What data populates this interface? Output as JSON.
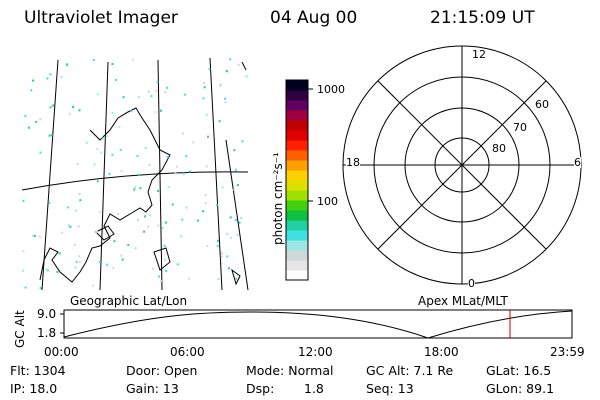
{
  "header": {
    "instrument": "Ultraviolet Imager",
    "date": "04 Aug 00",
    "time": "21:15:09 UT"
  },
  "colorbar": {
    "unit_label": "photon cm⁻²s⁻¹",
    "tick_labels": [
      "1000",
      "100"
    ],
    "colors": [
      "#ffffff",
      "#e6e6e6",
      "#cfd8d8",
      "#9ee6e6",
      "#40e0e0",
      "#20d0a0",
      "#10c040",
      "#40d010",
      "#a0e000",
      "#e0e000",
      "#ffd000",
      "#ffa000",
      "#ff6000",
      "#ff2000",
      "#e00000",
      "#c00000",
      "#a00040",
      "#600060",
      "#300040",
      "#000020"
    ]
  },
  "polar_plot": {
    "mlt_labels": {
      "top": "12",
      "right": "6",
      "bottom": "0",
      "left": "18"
    },
    "lat_labels": [
      "60",
      "70",
      "80"
    ]
  },
  "map_labels": {
    "left": "Geographic Lat/Lon",
    "right": "Apex MLat/MLT"
  },
  "altitude_plot": {
    "ylabel": "GC Alt",
    "y_ticks": [
      "9.0",
      "1.8"
    ],
    "x_ticks": [
      "00:00",
      "06:00",
      "12:00",
      "18:00",
      "23:59"
    ],
    "marker_color": "#cc0000"
  },
  "info": {
    "flt": "Flt: 1304",
    "door": "Door: Open",
    "mode": "Mode: Normal",
    "gcalt": "GC Alt: 7.1 Re",
    "glat": "GLat: 16.5",
    "ip": "IP: 18.0",
    "gain": "Gain: 13",
    "dsp": "Dsp:",
    "dsp_value": "1.8",
    "seq": "Seq: 13",
    "glon": "GLon: 89.1"
  }
}
